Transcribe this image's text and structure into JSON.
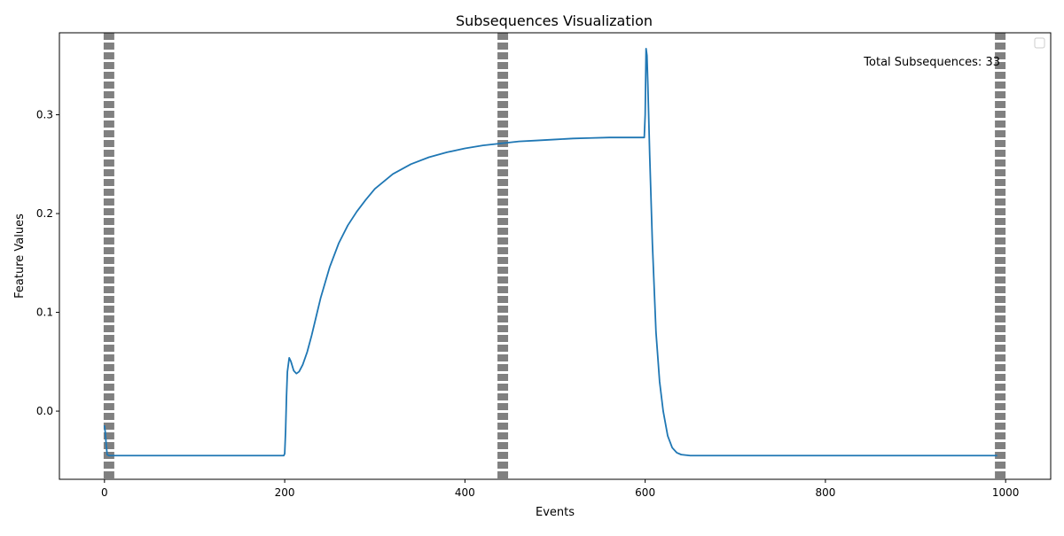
{
  "chart_data": {
    "type": "line",
    "title": "Subsequences Visualization",
    "xlabel": "Events",
    "ylabel": "Feature Values",
    "xlim": [
      -50,
      1050
    ],
    "ylim": [
      -0.069,
      0.383
    ],
    "xticks": [
      0,
      200,
      400,
      600,
      800,
      1000
    ],
    "yticks": [
      0.0,
      0.1,
      0.2,
      0.3
    ],
    "xtick_labels": [
      "0",
      "200",
      "400",
      "600",
      "800",
      "1000"
    ],
    "ytick_labels": [
      "0.0",
      "0.1",
      "0.2",
      "0.3"
    ],
    "grid": false,
    "legend": "top-right (empty)",
    "annotation": "Total Subsequences: 33",
    "boundary_lines": [
      5,
      442,
      994
    ],
    "colors": {
      "series": "#1f77b4",
      "boundary": "#808080"
    },
    "series": [
      {
        "x": [
          0,
          1,
          2,
          3,
          5,
          10,
          50,
          100,
          150,
          199,
          200,
          201,
          202,
          203,
          205,
          207,
          210,
          213,
          216,
          220,
          225,
          230,
          235,
          240,
          250,
          260,
          270,
          280,
          290,
          300,
          320,
          340,
          360,
          380,
          400,
          420,
          440,
          460,
          480,
          500,
          520,
          540,
          560,
          580,
          599,
          600,
          601,
          602,
          603,
          605,
          608,
          612,
          616,
          620,
          625,
          630,
          635,
          640,
          650,
          700,
          800,
          900,
          990
        ],
        "y": [
          -0.015,
          -0.022,
          -0.035,
          -0.044,
          -0.045,
          -0.045,
          -0.045,
          -0.045,
          -0.045,
          -0.045,
          -0.043,
          -0.02,
          0.015,
          0.04,
          0.054,
          0.05,
          0.041,
          0.038,
          0.04,
          0.047,
          0.06,
          0.077,
          0.096,
          0.115,
          0.146,
          0.17,
          0.188,
          0.202,
          0.214,
          0.225,
          0.24,
          0.25,
          0.257,
          0.262,
          0.266,
          0.269,
          0.271,
          0.273,
          0.274,
          0.275,
          0.276,
          0.2765,
          0.277,
          0.277,
          0.277,
          0.3,
          0.367,
          0.36,
          0.33,
          0.26,
          0.17,
          0.08,
          0.03,
          0.0,
          -0.025,
          -0.037,
          -0.042,
          -0.044,
          -0.045,
          -0.045,
          -0.045,
          -0.045,
          -0.045
        ]
      }
    ]
  }
}
